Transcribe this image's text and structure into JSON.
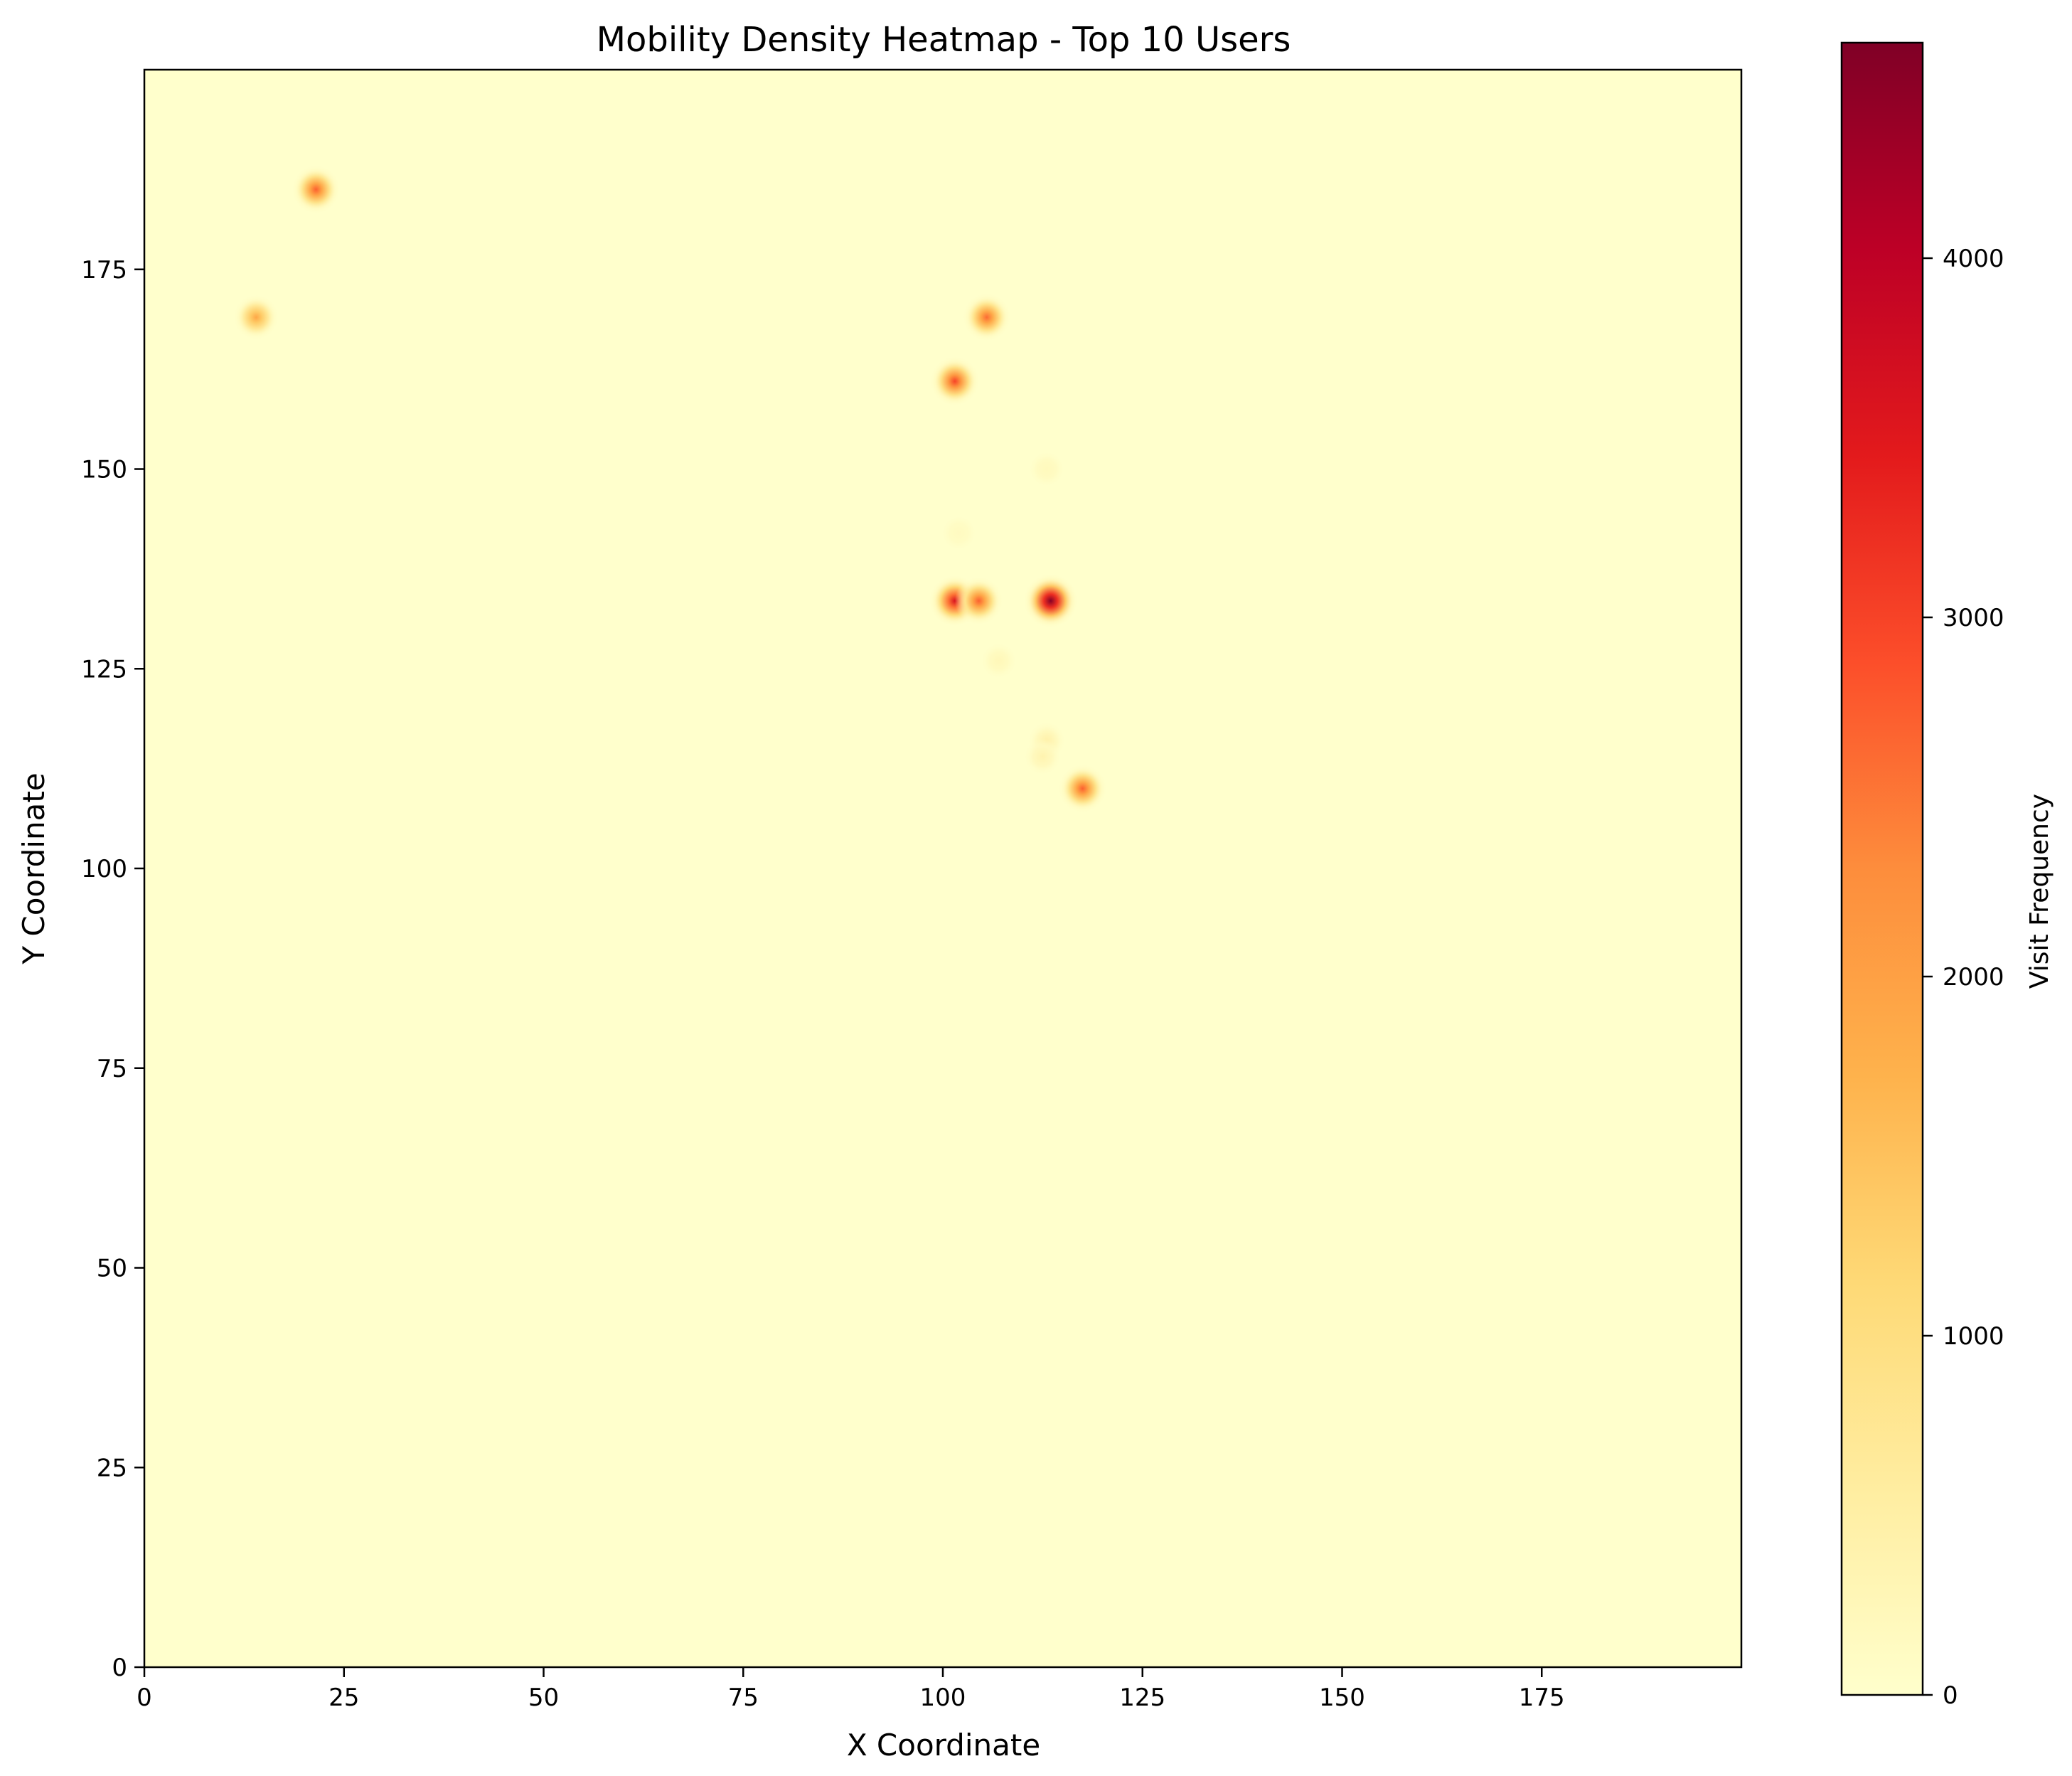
{
  "chart_data": {
    "type": "heatmap",
    "title": "Mobility Density Heatmap - Top 10 Users",
    "xlabel": "X Coordinate",
    "ylabel": "Y Coordinate",
    "xlim": [
      0,
      200
    ],
    "ylim": [
      0,
      200
    ],
    "xticks": [
      0,
      25,
      50,
      75,
      100,
      125,
      150,
      175
    ],
    "yticks": [
      0,
      25,
      50,
      75,
      100,
      125,
      150,
      175
    ],
    "colorbar": {
      "label": "Visit Frequency",
      "range": [
        0,
        4600
      ],
      "ticks": [
        0,
        1000,
        2000,
        3000,
        4000
      ],
      "colormap": [
        "#ffffcc",
        "#ffeda0",
        "#fed976",
        "#feb24c",
        "#fd8d3c",
        "#fc4e2a",
        "#e31a1c",
        "#bd0026",
        "#800026"
      ]
    },
    "grid": false,
    "hotspots": [
      {
        "x": 21.5,
        "y": 185,
        "value": 2700
      },
      {
        "x": 14,
        "y": 169,
        "value": 1900
      },
      {
        "x": 105.5,
        "y": 169,
        "value": 2600
      },
      {
        "x": 101.5,
        "y": 161,
        "value": 3000
      },
      {
        "x": 101.5,
        "y": 133.5,
        "value": 3600
      },
      {
        "x": 104.5,
        "y": 133.5,
        "value": 2700
      },
      {
        "x": 113.5,
        "y": 133.5,
        "value": 4550
      },
      {
        "x": 117.5,
        "y": 110,
        "value": 2700
      },
      {
        "x": 113,
        "y": 116,
        "value": 450
      },
      {
        "x": 112.5,
        "y": 114,
        "value": 380
      },
      {
        "x": 107,
        "y": 126,
        "value": 250
      },
      {
        "x": 113,
        "y": 150,
        "value": 200
      },
      {
        "x": 102,
        "y": 142,
        "value": 150
      }
    ]
  }
}
